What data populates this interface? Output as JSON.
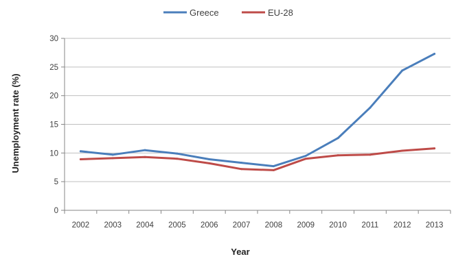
{
  "chart_data": {
    "type": "line",
    "title": "",
    "xlabel": "Year",
    "ylabel": "Unemployment rate (%)",
    "categories": [
      "2002",
      "2003",
      "2004",
      "2005",
      "2006",
      "2007",
      "2008",
      "2009",
      "2010",
      "2011",
      "2012",
      "2013"
    ],
    "ylim": [
      0,
      30
    ],
    "yticks": [
      0,
      5,
      10,
      15,
      20,
      25,
      30
    ],
    "grid": true,
    "legend_position": "top-center",
    "series": [
      {
        "name": "Greece",
        "color": "#4a7ebb",
        "values": [
          10.3,
          9.7,
          10.5,
          9.9,
          8.9,
          8.3,
          7.7,
          9.5,
          12.6,
          17.9,
          24.4,
          27.3
        ]
      },
      {
        "name": "EU-28",
        "color": "#be4b48",
        "values": [
          8.9,
          9.1,
          9.3,
          9.0,
          8.2,
          7.2,
          7.0,
          9.0,
          9.6,
          9.7,
          10.4,
          10.8
        ]
      }
    ]
  }
}
